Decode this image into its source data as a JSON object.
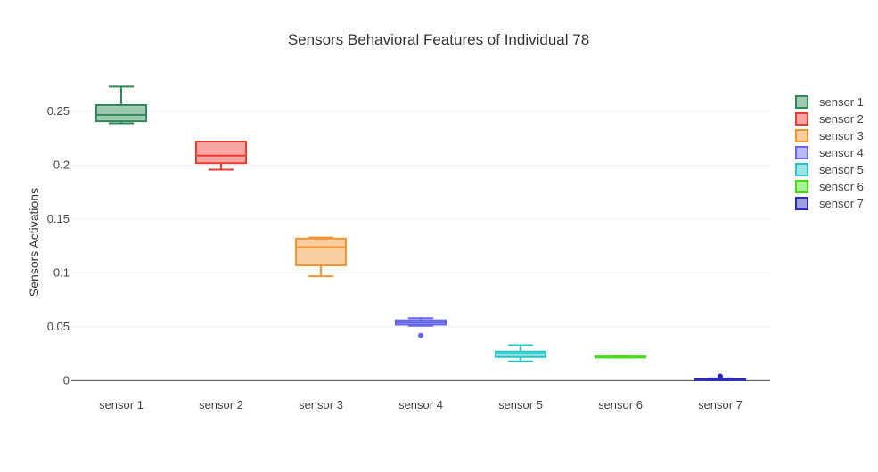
{
  "chart_data": {
    "type": "box",
    "title": "Sensors Behavioral Features of Individual 78",
    "xlabel": "",
    "ylabel": "Sensors Activations",
    "ylim": [
      -0.008,
      0.275
    ],
    "yticks": [
      0,
      0.05,
      0.1,
      0.15,
      0.2,
      0.25
    ],
    "ytick_labels": [
      "0",
      "0.05",
      "0.1",
      "0.15",
      "0.2",
      "0.25"
    ],
    "grid": true,
    "legend_position": "right",
    "categories": [
      "sensor 1",
      "sensor 2",
      "sensor 3",
      "sensor 4",
      "sensor 5",
      "sensor 6",
      "sensor 7"
    ],
    "series": [
      {
        "name": "sensor 1",
        "color": "#2e8b57",
        "min": 0.239,
        "q1": 0.241,
        "median": 0.247,
        "q3": 0.256,
        "max": 0.273,
        "outliers": []
      },
      {
        "name": "sensor 2",
        "color": "#ef3a2f",
        "min": 0.196,
        "q1": 0.202,
        "median": 0.209,
        "q3": 0.222,
        "max": 0.222,
        "outliers": []
      },
      {
        "name": "sensor 3",
        "color": "#f7932b",
        "min": 0.097,
        "q1": 0.107,
        "median": 0.124,
        "q3": 0.132,
        "max": 0.133,
        "outliers": []
      },
      {
        "name": "sensor 4",
        "color": "#6666ee",
        "min": 0.051,
        "q1": 0.052,
        "median": 0.054,
        "q3": 0.056,
        "max": 0.058,
        "outliers": [
          0.042
        ]
      },
      {
        "name": "sensor 5",
        "color": "#2bc4c4",
        "min": 0.018,
        "q1": 0.022,
        "median": 0.025,
        "q3": 0.027,
        "max": 0.033,
        "outliers": []
      },
      {
        "name": "sensor 6",
        "color": "#44dd11",
        "min": 0.0215,
        "q1": 0.0215,
        "median": 0.022,
        "q3": 0.0225,
        "max": 0.0225,
        "outliers": []
      },
      {
        "name": "sensor 7",
        "color": "#2b2bbb",
        "min": 0.0005,
        "q1": 0.0005,
        "median": 0.001,
        "q3": 0.0015,
        "max": 0.002,
        "outliers": [
          0.004
        ]
      }
    ]
  }
}
